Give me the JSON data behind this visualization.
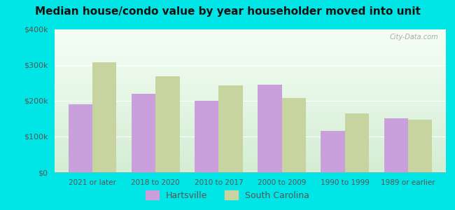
{
  "title": "Median house/condo value by year householder moved into unit",
  "categories": [
    "2021 or later",
    "2018 to 2020",
    "2010 to 2017",
    "2000 to 2009",
    "1990 to 1999",
    "1989 or earlier"
  ],
  "hartsville": [
    190000,
    220000,
    200000,
    245000,
    115000,
    150000
  ],
  "south_carolina": [
    308000,
    268000,
    243000,
    208000,
    165000,
    148000
  ],
  "hartsville_color": "#c9a0dc",
  "south_carolina_color": "#c8d4a0",
  "background_color": "#00e5e5",
  "plot_bg_topleft": "#d4edd4",
  "plot_bg_bottomright": "#f5fff5",
  "ylim_max": 400000,
  "yticks": [
    0,
    100000,
    200000,
    300000,
    400000
  ],
  "ytick_labels": [
    "$0",
    "$100k",
    "$200k",
    "$300k",
    "$400k"
  ],
  "watermark": "City-Data.com",
  "legend_hartsville": "Hartsville",
  "legend_sc": "South Carolina",
  "bar_width": 0.38,
  "grid_color": "#e0e0c8",
  "tick_color": "#555555",
  "title_color": "#111111"
}
